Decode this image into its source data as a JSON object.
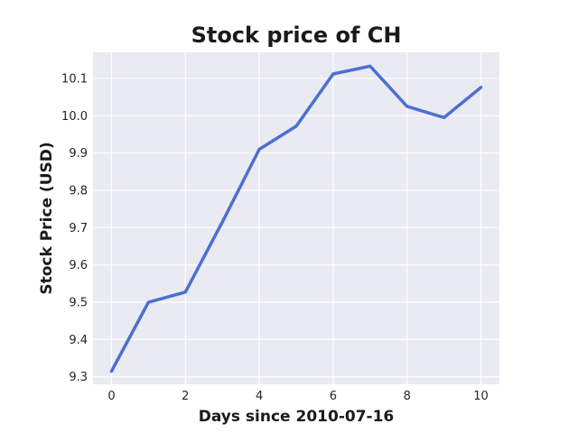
{
  "chart_data": {
    "type": "line",
    "title": "Stock price of CH",
    "xlabel": "Days since 2010-07-16",
    "ylabel": "Stock Price (USD)",
    "xlim": [
      -0.5,
      10.5
    ],
    "ylim": [
      9.28,
      10.17
    ],
    "xticks": [
      0,
      2,
      4,
      6,
      8,
      10
    ],
    "yticks": [
      9.3,
      9.4,
      9.5,
      9.6,
      9.7,
      9.8,
      9.9,
      10.0,
      10.1
    ],
    "grid": true,
    "background_color": "#eaeaf2",
    "series": [
      {
        "color": "#4c6fd1",
        "x": [
          0,
          1,
          2,
          3,
          4,
          5,
          6,
          7,
          8,
          9,
          10
        ],
        "y": [
          9.315,
          9.5,
          9.527,
          9.715,
          9.91,
          9.972,
          10.112,
          10.133,
          10.025,
          9.995,
          10.076
        ]
      }
    ]
  }
}
